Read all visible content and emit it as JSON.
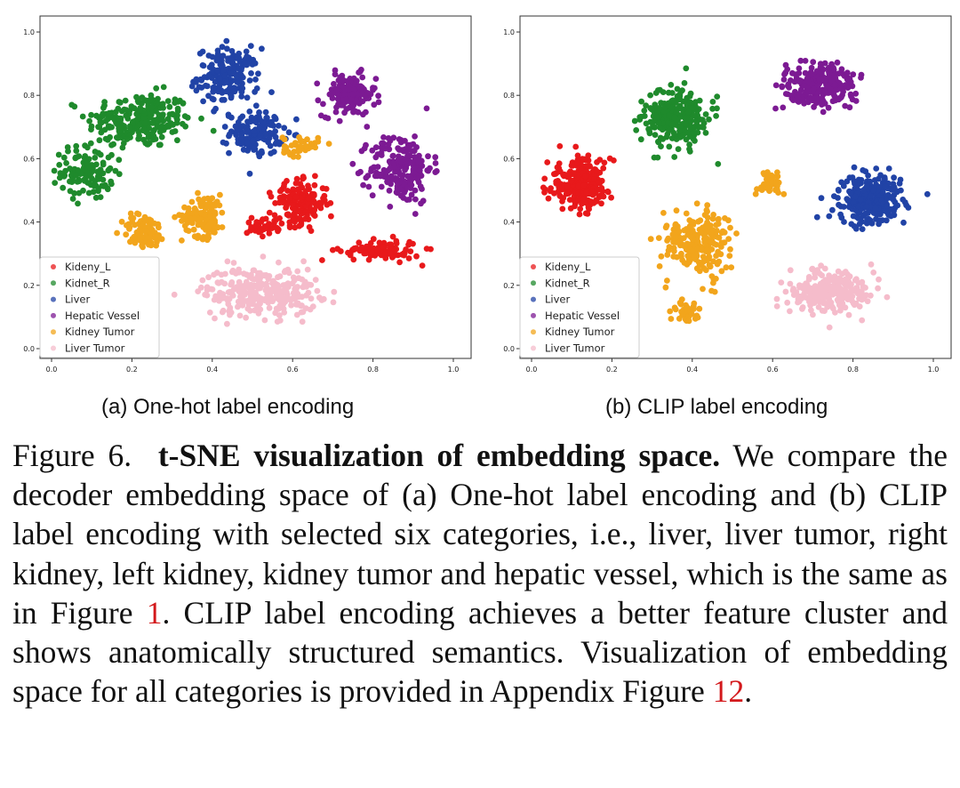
{
  "charts": {
    "colors": {
      "Kideny_L": "#e8191b",
      "Kidnet_R": "#1f8a2c",
      "Liver": "#2143a6",
      "Hepatic Vessel": "#7c1a93",
      "Kidney Tumor": "#f2a51c",
      "Liver Tumor": "#f5bccb"
    }
  },
  "chart_data": [
    {
      "type": "scatter",
      "title": "",
      "xlabel": "",
      "ylabel": "",
      "xlim": [
        0.0,
        1.0
      ],
      "ylim": [
        0.0,
        1.0
      ],
      "xticks": [
        "0.0",
        "0.2",
        "0.4",
        "0.6",
        "0.8",
        "1.0"
      ],
      "yticks": [
        "0.0",
        "0.2",
        "0.4",
        "0.6",
        "0.8",
        "1.0"
      ],
      "legend": [
        "Kideny_L",
        "Kidnet_R",
        "Liver",
        "Hepatic Vessel",
        "Kidney Tumor",
        "Liver Tumor"
      ],
      "legend_location": "lower-left",
      "grid": false,
      "clusters": [
        {
          "name": "Kidnet_R",
          "cx": 0.22,
          "cy": 0.72,
          "sx": 0.12,
          "sy": 0.08,
          "n": 240
        },
        {
          "name": "Kidnet_R",
          "cx": 0.09,
          "cy": 0.56,
          "sx": 0.06,
          "sy": 0.08,
          "n": 120
        },
        {
          "name": "Liver",
          "cx": 0.44,
          "cy": 0.86,
          "sx": 0.07,
          "sy": 0.08,
          "n": 180
        },
        {
          "name": "Liver",
          "cx": 0.51,
          "cy": 0.68,
          "sx": 0.06,
          "sy": 0.06,
          "n": 130
        },
        {
          "name": "Hepatic Vessel",
          "cx": 0.74,
          "cy": 0.8,
          "sx": 0.06,
          "sy": 0.06,
          "n": 140
        },
        {
          "name": "Hepatic Vessel",
          "cx": 0.87,
          "cy": 0.57,
          "sx": 0.07,
          "sy": 0.1,
          "n": 200
        },
        {
          "name": "Kidney Tumor",
          "cx": 0.23,
          "cy": 0.37,
          "sx": 0.05,
          "sy": 0.05,
          "n": 90
        },
        {
          "name": "Kidney Tumor",
          "cx": 0.38,
          "cy": 0.42,
          "sx": 0.05,
          "sy": 0.06,
          "n": 120
        },
        {
          "name": "Kidney Tumor",
          "cx": 0.62,
          "cy": 0.64,
          "sx": 0.04,
          "sy": 0.03,
          "n": 40
        },
        {
          "name": "Kideny_L",
          "cx": 0.62,
          "cy": 0.46,
          "sx": 0.06,
          "sy": 0.06,
          "n": 160
        },
        {
          "name": "Kideny_L",
          "cx": 0.82,
          "cy": 0.31,
          "sx": 0.09,
          "sy": 0.03,
          "n": 90
        },
        {
          "name": "Kideny_L",
          "cx": 0.53,
          "cy": 0.39,
          "sx": 0.04,
          "sy": 0.03,
          "n": 40
        },
        {
          "name": "Liver Tumor",
          "cx": 0.52,
          "cy": 0.18,
          "sx": 0.13,
          "sy": 0.07,
          "n": 280
        }
      ]
    },
    {
      "type": "scatter",
      "title": "",
      "xlabel": "",
      "ylabel": "",
      "xlim": [
        0.0,
        1.0
      ],
      "ylim": [
        0.0,
        1.0
      ],
      "xticks": [
        "0.0",
        "0.2",
        "0.4",
        "0.6",
        "0.8",
        "1.0"
      ],
      "yticks": [
        "0.0",
        "0.2",
        "0.4",
        "0.6",
        "0.8",
        "1.0"
      ],
      "legend": [
        "Kideny_L",
        "Kidnet_R",
        "Liver",
        "Hepatic Vessel",
        "Kidney Tumor",
        "Liver Tumor"
      ],
      "legend_location": "lower-left",
      "grid": false,
      "clusters": [
        {
          "name": "Kideny_L",
          "cx": 0.12,
          "cy": 0.52,
          "sx": 0.07,
          "sy": 0.07,
          "n": 260
        },
        {
          "name": "Kidnet_R",
          "cx": 0.36,
          "cy": 0.73,
          "sx": 0.07,
          "sy": 0.08,
          "n": 260
        },
        {
          "name": "Hepatic Vessel",
          "cx": 0.72,
          "cy": 0.83,
          "sx": 0.08,
          "sy": 0.06,
          "n": 260
        },
        {
          "name": "Liver",
          "cx": 0.84,
          "cy": 0.47,
          "sx": 0.07,
          "sy": 0.07,
          "n": 280
        },
        {
          "name": "Kidney Tumor",
          "cx": 0.41,
          "cy": 0.34,
          "sx": 0.07,
          "sy": 0.09,
          "n": 220
        },
        {
          "name": "Kidney Tumor",
          "cx": 0.59,
          "cy": 0.52,
          "sx": 0.03,
          "sy": 0.04,
          "n": 40
        },
        {
          "name": "Kidney Tumor",
          "cx": 0.38,
          "cy": 0.12,
          "sx": 0.03,
          "sy": 0.04,
          "n": 40
        },
        {
          "name": "Liver Tumor",
          "cx": 0.74,
          "cy": 0.18,
          "sx": 0.09,
          "sy": 0.06,
          "n": 260
        }
      ]
    }
  ],
  "subcaptions": {
    "a": "(a) One-hot label encoding",
    "b": "(b) CLIP label encoding"
  },
  "caption": {
    "lead": "Figure 6.",
    "title": "t-SNE visualization of embedding space.",
    "body1": "We compare the decoder embedding space of (a) One-hot label encoding and (b) CLIP label encoding with selected six categories, i.e., liver, liver tumor, right kidney, left kidney, kidney tumor and hepatic vessel, which is the same as in Figure",
    "ref1": "1",
    "body2": ". CLIP label encoding achieves a better feature cluster and shows anatomically structured semantics. Visualization of embedding space for all categories is provided in Appendix Figure",
    "ref2": "12",
    "body3": "."
  }
}
